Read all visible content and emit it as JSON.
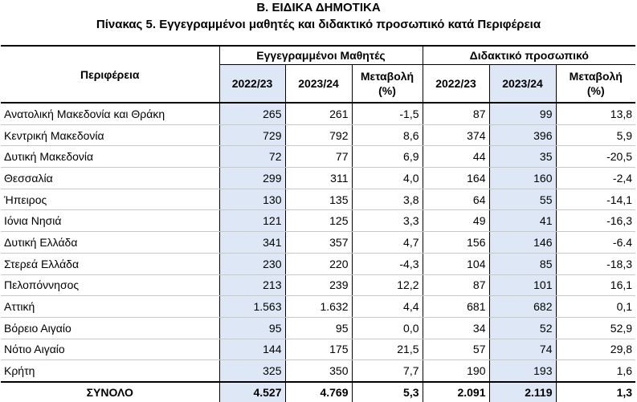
{
  "title": "Β. ΕΙΔΙΚΑ ΔΗΜΟΤΙΚΑ",
  "subtitle": "Πίνακας 5. Εγγεγραμμένοι μαθητές και διδακτικό προσωπικό κατά Περιφέρεια",
  "table": {
    "region_header": "Περιφέρεια",
    "group_students": "Εγγεγραμμένοι Μαθητές",
    "group_staff": "Διδακτικό προσωπικό",
    "col_2022": "2022/23",
    "col_2023": "2023/24",
    "col_change": "Μεταβολή (%)",
    "shade_color": "#dde7f5",
    "rows": [
      {
        "region": "Ανατολική Μακεδονία και Θράκη",
        "s22": "265",
        "s23": "261",
        "sch": "-1,5",
        "t22": "87",
        "t23": "99",
        "tch": "13,8"
      },
      {
        "region": "Κεντρική Μακεδονία",
        "s22": "729",
        "s23": "792",
        "sch": "8,6",
        "t22": "374",
        "t23": "396",
        "tch": "5,9"
      },
      {
        "region": "Δυτική Μακεδονία",
        "s22": "72",
        "s23": "77",
        "sch": "6,9",
        "t22": "44",
        "t23": "35",
        "tch": "-20,5"
      },
      {
        "region": "Θεσσαλία",
        "s22": "299",
        "s23": "311",
        "sch": "4,0",
        "t22": "164",
        "t23": "160",
        "tch": "-2,4"
      },
      {
        "region": "Ήπειρος",
        "s22": "130",
        "s23": "135",
        "sch": "3,8",
        "t22": "64",
        "t23": "55",
        "tch": "-14,1"
      },
      {
        "region": "Ιόνια Νησιά",
        "s22": "121",
        "s23": "125",
        "sch": "3,3",
        "t22": "49",
        "t23": "41",
        "tch": "-16,3"
      },
      {
        "region": "Δυτική Ελλάδα",
        "s22": "341",
        "s23": "357",
        "sch": "4,7",
        "t22": "156",
        "t23": "146",
        "tch": "-6.4"
      },
      {
        "region": "Στερεά Ελλάδα",
        "s22": "230",
        "s23": "220",
        "sch": "-4,3",
        "t22": "104",
        "t23": "85",
        "tch": "-18,3"
      },
      {
        "region": "Πελοπόννησος",
        "s22": "213",
        "s23": "239",
        "sch": "12,2",
        "t22": "87",
        "t23": "101",
        "tch": "16,1"
      },
      {
        "region": "Αττική",
        "s22": "1.563",
        "s23": "1.632",
        "sch": "4,4",
        "t22": "681",
        "t23": "682",
        "tch": "0,1"
      },
      {
        "region": "Βόρειο Αιγαίο",
        "s22": "95",
        "s23": "95",
        "sch": "0,0",
        "t22": "34",
        "t23": "52",
        "tch": "52,9"
      },
      {
        "region": "Νότιο Αιγαίο",
        "s22": "144",
        "s23": "175",
        "sch": "21,5",
        "t22": "57",
        "t23": "74",
        "tch": "29,8"
      },
      {
        "region": "Κρήτη",
        "s22": "325",
        "s23": "350",
        "sch": "7,7",
        "t22": "190",
        "t23": "193",
        "tch": "1,6"
      }
    ],
    "total": {
      "region": "ΣΥΝΟΛΟ",
      "s22": "4.527",
      "s23": "4.769",
      "sch": "5,3",
      "t22": "2.091",
      "t23": "2.119",
      "tch": "1,3"
    }
  }
}
